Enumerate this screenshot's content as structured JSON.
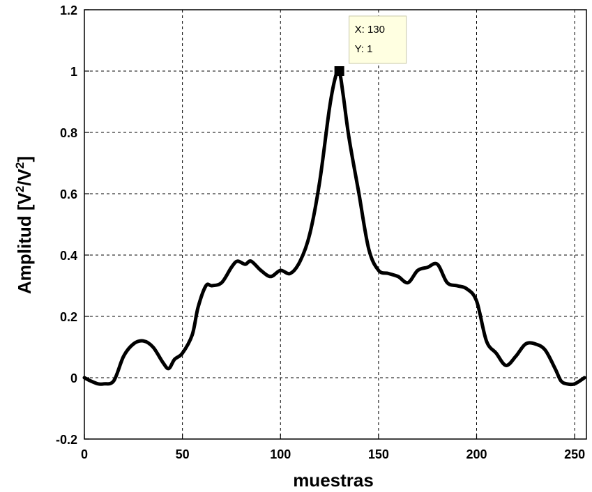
{
  "chart_data": {
    "type": "line",
    "title": "",
    "xlabel": "muestras",
    "ylabel_main": "Amplitud [V",
    "ylabel_sup1": "2",
    "ylabel_mid": "/V",
    "ylabel_sup2": "2",
    "ylabel_end": "]",
    "xlim": [
      0,
      256
    ],
    "ylim": [
      -0.2,
      1.2
    ],
    "grid": true,
    "line_color": "#000000",
    "xticks": [
      0,
      50,
      100,
      150,
      200,
      250
    ],
    "xtick_labels": [
      "0",
      "50",
      "100",
      "150",
      "200",
      "250"
    ],
    "yticks": [
      -0.2,
      0,
      0.2,
      0.4,
      0.6,
      0.8,
      1,
      1.2
    ],
    "ytick_labels": [
      "-0.2",
      "0",
      "0.2",
      "0.4",
      "0.6",
      "0.8",
      "1",
      "1.2"
    ],
    "series": [
      {
        "x": [
          0,
          3,
          7,
          10,
          15,
          20,
          25,
          30,
          35,
          40,
          43,
          46,
          50,
          55,
          58,
          62,
          65,
          70,
          75,
          78,
          82,
          85,
          90,
          95,
          100,
          105,
          110,
          115,
          120,
          125,
          128,
          130,
          132,
          135,
          140,
          145,
          150,
          155,
          160,
          165,
          170,
          175,
          180,
          185,
          190,
          195,
          200,
          205,
          210,
          215,
          220,
          225,
          230,
          235,
          240,
          243,
          246,
          250,
          255
        ],
        "y": [
          0.0,
          -0.01,
          -0.02,
          -0.02,
          -0.01,
          0.07,
          0.11,
          0.12,
          0.1,
          0.05,
          0.03,
          0.06,
          0.08,
          0.14,
          0.23,
          0.3,
          0.3,
          0.31,
          0.36,
          0.38,
          0.37,
          0.38,
          0.35,
          0.33,
          0.35,
          0.34,
          0.38,
          0.47,
          0.64,
          0.88,
          0.98,
          1.0,
          0.92,
          0.78,
          0.6,
          0.42,
          0.35,
          0.34,
          0.33,
          0.31,
          0.35,
          0.36,
          0.37,
          0.31,
          0.3,
          0.29,
          0.25,
          0.12,
          0.08,
          0.04,
          0.07,
          0.11,
          0.11,
          0.09,
          0.03,
          -0.01,
          -0.02,
          -0.02,
          0.0
        ]
      }
    ],
    "datatip": {
      "x": 130,
      "y": 1,
      "x_text": "X: 130",
      "y_text": "Y: 1"
    }
  }
}
